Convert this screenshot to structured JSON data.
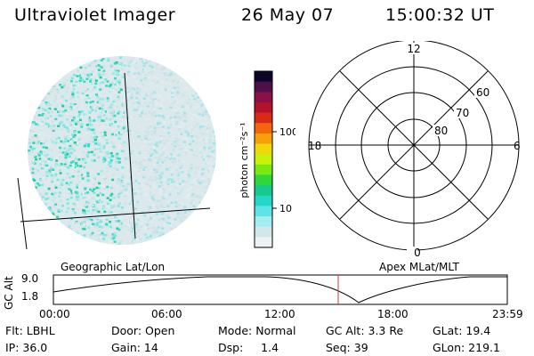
{
  "header": {
    "title": "Ultraviolet Imager",
    "date": "26 May 07",
    "time": "15:00:32 UT"
  },
  "image_panel": {
    "dot_colors": [
      "#cfe3e6",
      "#9fe6e8",
      "#7ce6e3",
      "#38d9c5",
      "#1fcf9b",
      "#e2ecef"
    ]
  },
  "colorbar": {
    "unit_label": "photon cm⁻²s⁻¹",
    "ticks": [
      "100",
      "10"
    ],
    "colors": [
      "#0c0628",
      "#4d0f4a",
      "#8a1045",
      "#b3122d",
      "#d92a17",
      "#f2660d",
      "#f7a00a",
      "#f0d80a",
      "#c9f10e",
      "#78ea12",
      "#2fd63e",
      "#16c98e",
      "#26d6c9",
      "#5fe3e8",
      "#a4ecef",
      "#d4e6ea",
      "#eef2f4"
    ]
  },
  "polar_plot": {
    "mlt_labels": [
      "12",
      "18",
      "6",
      "0"
    ],
    "lat_labels": [
      "60",
      "70",
      "80"
    ]
  },
  "timeline": {
    "ylabel": "GC Alt",
    "y_ticks": [
      "9.0",
      "1.8"
    ],
    "left_label": "Geographic Lat/Lon",
    "right_label": "Apex  MLat/MLT",
    "x_ticks": [
      "00:00",
      "06:00",
      "12:00",
      "18:00",
      "23:59"
    ],
    "marker_color": "#d23a3a"
  },
  "info": {
    "row1": [
      "Flt: LBHL",
      "Door: Open",
      "Mode: Normal",
      "GC Alt: 3.3 Re",
      "GLat:  19.4"
    ],
    "row2": [
      "IP: 36.0",
      "Gain: 14",
      "Dsp:     1.4",
      "Seq: 39",
      "GLon: 219.1"
    ]
  }
}
